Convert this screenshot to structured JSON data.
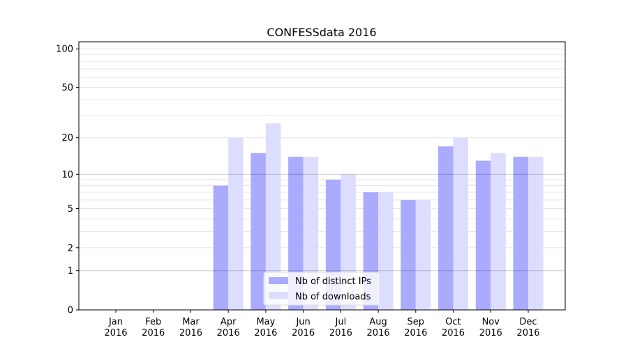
{
  "chart_data": {
    "type": "bar",
    "title": "CONFESSdata 2016",
    "xlabel": "",
    "ylabel": "",
    "yscale": "symlog (log10(1+y))",
    "ylim": [
      0,
      110
    ],
    "yticks": [
      0,
      1,
      2,
      5,
      10,
      20,
      50,
      100
    ],
    "ytick_labels": [
      "0",
      "1",
      "2",
      "5",
      "10",
      "20",
      "50",
      "100"
    ],
    "minor_grid": [
      3,
      4,
      6,
      7,
      8,
      9,
      30,
      40,
      60,
      70,
      80,
      90
    ],
    "major_grid": [
      1,
      10
    ],
    "grid": true,
    "categories": [
      [
        "Jan",
        "2016"
      ],
      [
        "Feb",
        "2016"
      ],
      [
        "Mar",
        "2016"
      ],
      [
        "Apr",
        "2016"
      ],
      [
        "May",
        "2016"
      ],
      [
        "Jun",
        "2016"
      ],
      [
        "Jul",
        "2016"
      ],
      [
        "Aug",
        "2016"
      ],
      [
        "Sep",
        "2016"
      ],
      [
        "Oct",
        "2016"
      ],
      [
        "Nov",
        "2016"
      ],
      [
        "Dec",
        "2016"
      ]
    ],
    "series": [
      {
        "name": "Nb of distinct IPs",
        "color": "#aaaaff",
        "values": [
          0,
          0,
          0,
          8,
          15,
          14,
          9,
          7,
          6,
          17,
          13,
          14
        ]
      },
      {
        "name": "Nb of downloads",
        "color": "#ddddff",
        "values": [
          0,
          0,
          0,
          20,
          26,
          14,
          10,
          7,
          6,
          20,
          15,
          14
        ]
      }
    ],
    "legend": "bottom-center"
  }
}
